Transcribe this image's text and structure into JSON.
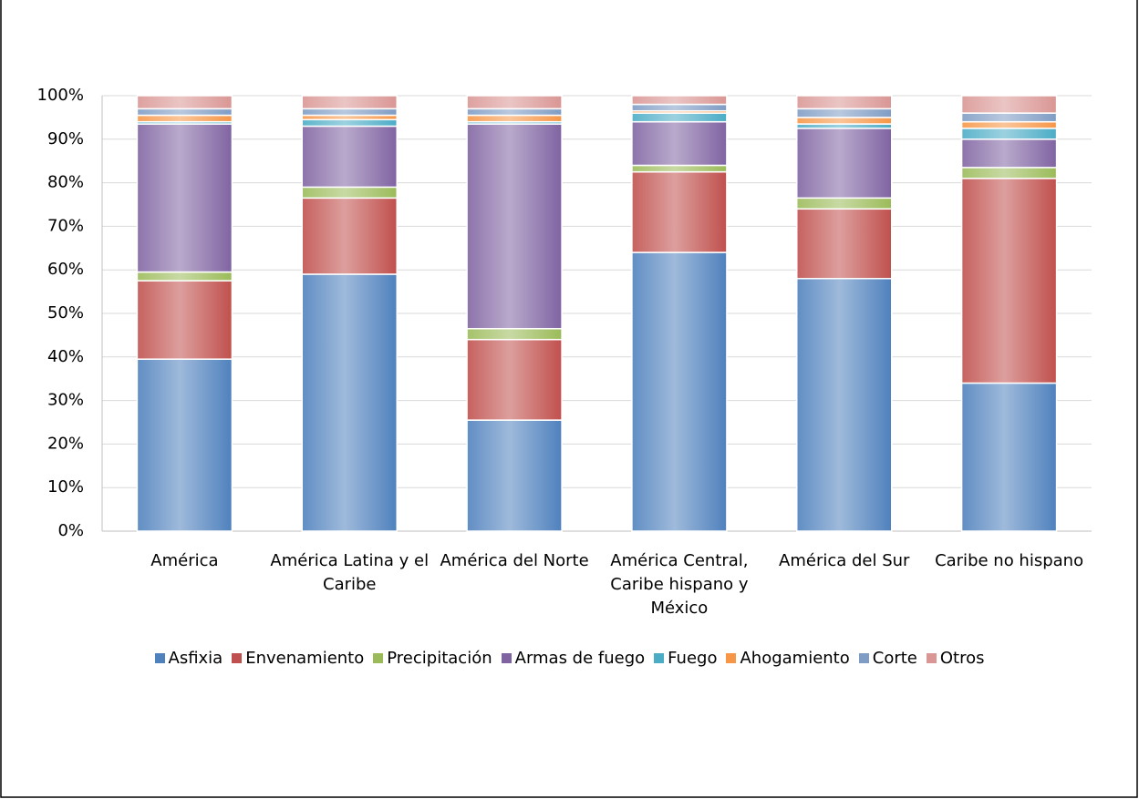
{
  "chart_data": {
    "type": "stacked-bar",
    "categories": [
      "América",
      "América Latina y el Caribe",
      "América del Norte",
      "América Central, Caribe hispano y México",
      "América del Sur",
      "Caribe no hispano"
    ],
    "series": [
      {
        "name": "Asfixia",
        "color": "#4f81bd",
        "values": [
          39.5,
          59,
          25.5,
          64,
          58,
          34
        ]
      },
      {
        "name": "Envenamiento",
        "color": "#c0504d",
        "values": [
          18,
          17.5,
          18.5,
          18.5,
          16,
          47
        ]
      },
      {
        "name": "Precipitación",
        "color": "#9bbb59",
        "values": [
          2,
          2.5,
          2.5,
          1.5,
          2.5,
          2.5
        ]
      },
      {
        "name": "Armas de fuego",
        "color": "#8064a2",
        "values": [
          34,
          14,
          47,
          10,
          16,
          6.5
        ]
      },
      {
        "name": "Fuego",
        "color": "#4bacc6",
        "values": [
          0.5,
          1.5,
          0.5,
          2,
          1,
          2.5
        ]
      },
      {
        "name": "Ahogamiento",
        "color": "#f79646",
        "values": [
          1.5,
          1,
          1.5,
          0.5,
          1.5,
          1.5
        ]
      },
      {
        "name": "Corte",
        "color": "#7f9cc4",
        "values": [
          1.5,
          1.5,
          1.5,
          1.5,
          2,
          2
        ]
      },
      {
        "name": "Otros",
        "color": "#d99694",
        "values": [
          3,
          3,
          3,
          2,
          3,
          4
        ]
      }
    ],
    "ylim": [
      0,
      100
    ],
    "yticks": [
      {
        "value": 0,
        "label": "0%"
      },
      {
        "value": 10,
        "label": "10%"
      },
      {
        "value": 20,
        "label": "20%"
      },
      {
        "value": 30,
        "label": "30%"
      },
      {
        "value": 40,
        "label": "40%"
      },
      {
        "value": 50,
        "label": "50%"
      },
      {
        "value": 60,
        "label": "60%"
      },
      {
        "value": 70,
        "label": "70%"
      },
      {
        "value": 80,
        "label": "80%"
      },
      {
        "value": 90,
        "label": "90%"
      },
      {
        "value": 100,
        "label": "100%"
      }
    ],
    "grid": true,
    "legend": "bottom"
  }
}
